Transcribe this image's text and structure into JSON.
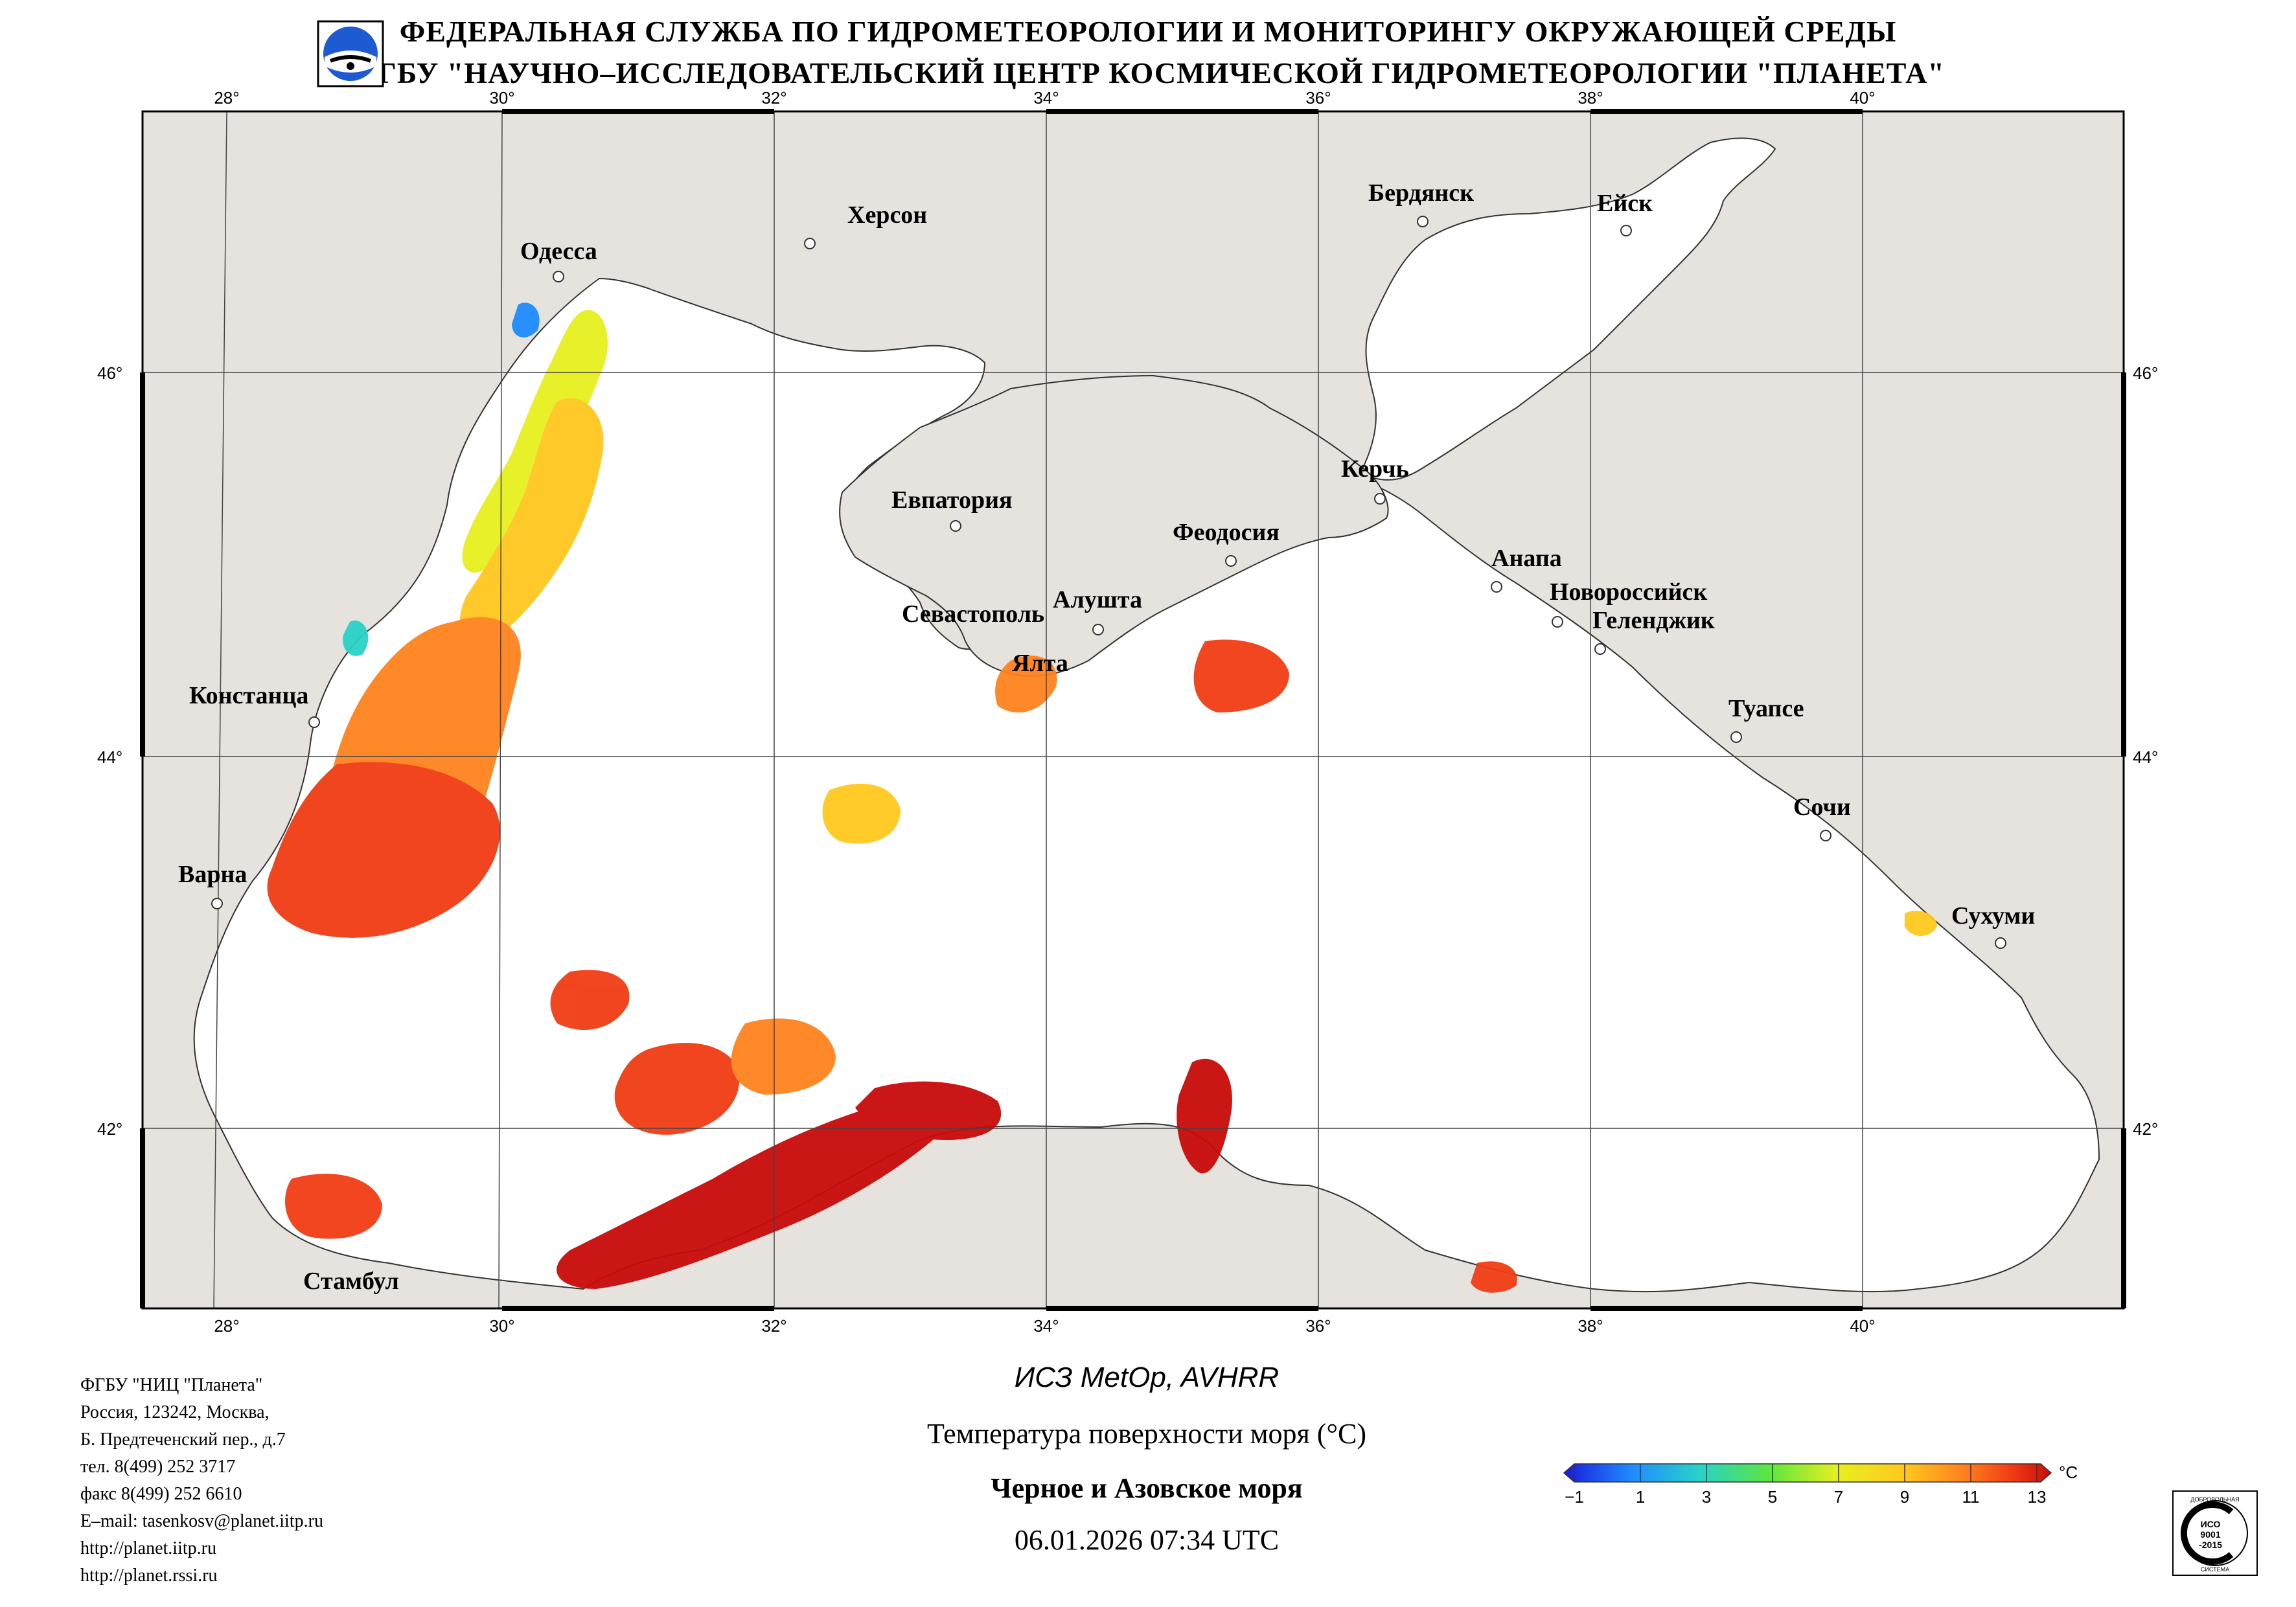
{
  "header": {
    "line1": "ФЕДЕРАЛЬНАЯ СЛУЖБА ПО ГИДРОМЕТЕОРОЛОГИИ И МОНИТОРИНГУ ОКРУЖАЮЩЕЙ СРЕДЫ",
    "line2": "ФГБУ \"НАУЧНО–ИССЛЕДОВАТЕЛЬСКИЙ ЦЕНТР КОСМИЧЕСКОЙ ГИДРОМЕТЕОРОЛОГИИ \"ПЛАНЕТА\""
  },
  "map": {
    "lon_ticks": [
      "28°",
      "30°",
      "32°",
      "34°",
      "36°",
      "38°",
      "40°"
    ],
    "lat_ticks": [
      "46°",
      "44°",
      "42°"
    ],
    "land_color": "#e6e3df",
    "sea_color": "#ffffff",
    "cities": [
      "Одесса",
      "Херсон",
      "Бердянск",
      "Ейск",
      "Евпатория",
      "Керчь",
      "Феодосия",
      "Анапа",
      "Новороссийск",
      "Геленджик",
      "Севастополь",
      "Алушта",
      "Ялта",
      "Констанца",
      "Туапсе",
      "Сочи",
      "Варна",
      "Сухуми",
      "Стамбул"
    ]
  },
  "footer": {
    "contact": [
      "ФГБУ \"НИЦ \"Планета\"",
      "Россия, 123242, Москва,",
      "Б. Предтеченский пер., д.7",
      "тел. 8(499) 252 3717",
      "факс 8(499) 252 6610",
      "E–mail: tasenkosv@planet.iitp.ru",
      "http://planet.iitp.ru",
      "http://planet.rssi.ru"
    ],
    "satellite": "ИСЗ MetOp, AVHRR",
    "parameter": "Температура поверхности моря (°C)",
    "region": "Черное и Азовское моря",
    "datetime": "06.01.2026 07:34 UTC"
  },
  "colorbar": {
    "unit": "°C",
    "ticks": [
      "−1",
      "1",
      "3",
      "5",
      "7",
      "9",
      "11",
      "13"
    ],
    "colors": [
      "#1a1adc",
      "#1e8cff",
      "#2ad2c8",
      "#5ae640",
      "#e6f01e",
      "#ffc81e",
      "#ff821e",
      "#f03c14",
      "#c80a0a"
    ]
  },
  "iso_badge": {
    "top_text": "ДОБРОВОЛЬНАЯ",
    "mid1": "ИСО",
    "mid2": "9001",
    "mid3": "-2015",
    "bottom_text": "СИСТЕМА"
  }
}
